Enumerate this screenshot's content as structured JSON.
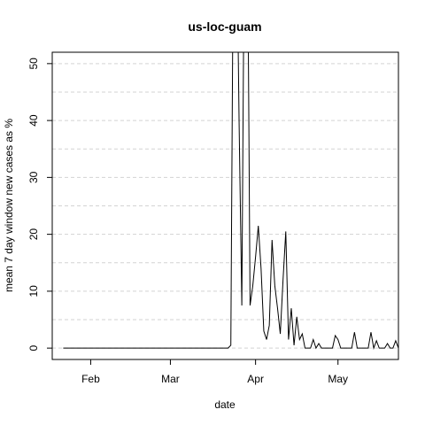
{
  "chart_data": {
    "type": "line",
    "title": "us-loc-guam",
    "xlabel": "date",
    "ylabel": "mean  7  day window new cases as %",
    "x_start": "2020-01-22",
    "xlim": [
      "2020-01-18",
      "2020-05-23"
    ],
    "ylim": [
      -2,
      52
    ],
    "x_ticks": [
      {
        "label": "Feb",
        "date": "2020-02-01"
      },
      {
        "label": "Mar",
        "date": "2020-03-01"
      },
      {
        "label": "Apr",
        "date": "2020-04-01"
      },
      {
        "label": "May",
        "date": "2020-05-01"
      }
    ],
    "y_ticks": [
      0,
      10,
      20,
      30,
      40,
      50
    ],
    "gridlines": [
      0,
      5,
      10,
      15,
      20,
      25,
      30,
      35,
      40,
      45,
      50
    ],
    "grid": true,
    "grid_style": "dashed-horizontal",
    "series": [
      {
        "color": "#000000",
        "values": [
          0,
          0,
          0,
          0,
          0,
          0,
          0,
          0,
          0,
          0,
          0,
          0,
          0,
          0,
          0,
          0,
          0,
          0,
          0,
          0,
          0,
          0,
          0,
          0,
          0,
          0,
          0,
          0,
          0,
          0,
          0,
          0,
          0,
          0,
          0,
          0,
          0,
          0,
          0,
          0,
          0,
          0,
          0,
          0,
          0,
          0,
          0,
          0,
          0,
          0,
          0,
          0,
          0,
          0,
          0,
          0,
          0,
          0,
          0,
          0,
          0,
          0.5,
          80,
          80,
          40,
          7.5,
          80,
          80,
          7.5,
          11,
          16,
          21.5,
          14,
          3,
          1.5,
          4,
          19,
          11,
          7,
          2.5,
          12,
          20.5,
          1.5,
          7,
          0.5,
          5.5,
          1.5,
          2.5,
          0,
          0,
          0,
          1.5,
          0,
          0.8,
          0,
          0,
          0,
          0,
          0,
          2.2,
          1.5,
          0,
          0,
          0,
          0,
          0,
          2.8,
          0,
          0,
          0,
          0,
          0,
          2.8,
          0,
          1.3,
          0,
          0,
          0,
          0.8,
          0,
          0,
          1.3,
          0
        ]
      }
    ]
  }
}
